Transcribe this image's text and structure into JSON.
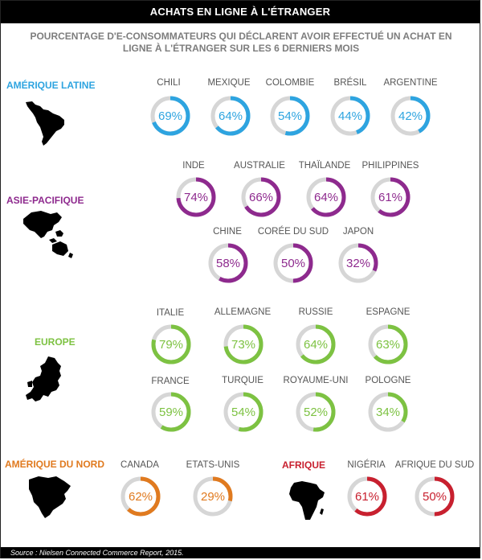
{
  "title": "ACHATS EN LIGNE À L'ÉTRANGER",
  "subtitle_lines": [
    "POURCENTAGE D'E-CONSOMMATEURS QUI DÉCLARENT AVOIR EFFECTUÉ UN ACHAT EN",
    "LIGNE À L'ÉTRANGER SUR LES 6 DERNIERS MOIS"
  ],
  "source": "Source : Nielsen Connected Commerce Report, 2015.",
  "colors": {
    "amerique_latine": "#2ea4e0",
    "asie_pacifique": "#8e2a8e",
    "europe": "#7dc242",
    "amerique_du_nord": "#e07a1f",
    "afrique": "#c8202f",
    "track": "#d6d6d6"
  },
  "regions": {
    "amerique_latine": "AMÉRIQUE LATINE",
    "asie_pacifique": "ASIE-PACIFIQUE",
    "europe": "EUROPE",
    "amerique_du_nord": "AMÉRIQUE DU NORD",
    "afrique": "AFRIQUE"
  },
  "chart_data": {
    "type": "donut",
    "unit": "%",
    "groups": [
      {
        "region": "AMÉRIQUE LATINE",
        "color": "#2ea4e0",
        "countries": [
          "CHILI",
          "MEXIQUE",
          "COLOMBIE",
          "BRÉSIL",
          "ARGENTINE"
        ],
        "values": [
          69,
          64,
          54,
          44,
          42
        ]
      },
      {
        "region": "ASIE-PACIFIQUE",
        "color": "#8e2a8e",
        "countries": [
          "INDE",
          "AUSTRALIE",
          "THAÏLANDE",
          "PHILIPPINES",
          "CHINE",
          "CORÉE DU SUD",
          "JAPON"
        ],
        "values": [
          74,
          66,
          64,
          61,
          58,
          50,
          32
        ]
      },
      {
        "region": "EUROPE",
        "color": "#7dc242",
        "countries": [
          "ITALIE",
          "ALLEMAGNE",
          "RUSSIE",
          "ESPAGNE",
          "FRANCE",
          "TURQUIE",
          "ROYAUME-UNI",
          "POLOGNE"
        ],
        "values": [
          79,
          73,
          64,
          63,
          59,
          54,
          52,
          34
        ]
      },
      {
        "region": "AMÉRIQUE DU NORD",
        "color": "#e07a1f",
        "countries": [
          "CANADA",
          "ETATS-UNIS"
        ],
        "values": [
          62,
          29
        ]
      },
      {
        "region": "AFRIQUE",
        "color": "#c8202f",
        "countries": [
          "NIGÉRIA",
          "AFRIQUE DU SUD"
        ],
        "values": [
          61,
          50
        ]
      }
    ]
  }
}
